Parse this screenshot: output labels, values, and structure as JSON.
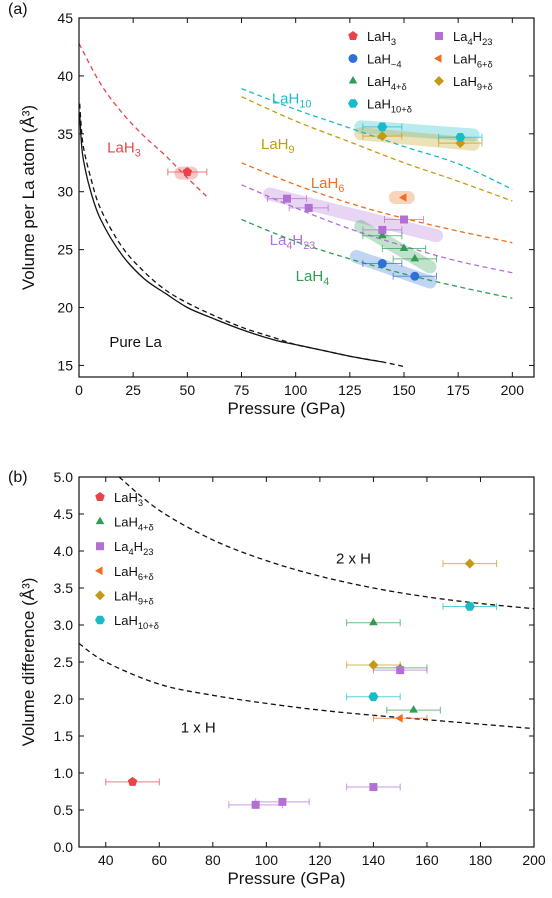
{
  "chart_data": [
    {
      "type": "scatter",
      "panel_label": "(a)",
      "xlabel": "Pressure (GPa)",
      "ylabel": "Volume per La atom (Å³)",
      "xlim": [
        0,
        210
      ],
      "ylim": [
        14,
        45
      ],
      "xticks": [
        "0",
        "25",
        "50",
        "75",
        "100",
        "125",
        "150",
        "175",
        "200"
      ],
      "yticks": [
        "15",
        "20",
        "25",
        "30",
        "35",
        "40",
        "45"
      ],
      "legend_position": "top-right",
      "legend": [
        {
          "base": "LaH",
          "sub": "3",
          "color": "#e8454a",
          "marker": "pentagon"
        },
        {
          "base": "La",
          "sub": "4",
          "sub2": "23",
          "mid": "H",
          "color": "#b36fd6",
          "marker": "square"
        },
        {
          "base": "LaH",
          "sub": "~4",
          "color": "#2e6fd8",
          "marker": "circle"
        },
        {
          "base": "LaH",
          "sub": "6+δ",
          "color": "#f06c1f",
          "marker": "tri-left"
        },
        {
          "base": "LaH",
          "sub": "4+δ",
          "color": "#2f9e55",
          "marker": "tri-up"
        },
        {
          "base": "LaH",
          "sub": "9+δ",
          "color": "#c49a14",
          "marker": "diamond"
        },
        {
          "base": "LaH",
          "sub": "10+δ",
          "color": "#18bcc7",
          "marker": "hexagon"
        }
      ],
      "annotations": [
        {
          "base": "LaH",
          "sub": "3",
          "x": 13,
          "y": 33.4,
          "color": "#e8454a"
        },
        {
          "base": "LaH",
          "sub": "10",
          "x": 89,
          "y": 37.6,
          "color": "#18bcc7"
        },
        {
          "base": "LaH",
          "sub": "9",
          "x": 84,
          "y": 33.7,
          "color": "#c49a14"
        },
        {
          "base": "LaH",
          "sub": "6",
          "x": 107,
          "y": 30.3,
          "color": "#f06c1f"
        },
        {
          "base": "La",
          "sub": "4",
          "mid": "H",
          "sub2": "23",
          "x": 88,
          "y": 25.4,
          "color": "#b36fd6"
        },
        {
          "base": "LaH",
          "sub": "4",
          "x": 100,
          "y": 22.3,
          "color": "#2f9e55"
        },
        {
          "base": "Pure La",
          "sub": "",
          "x": 14,
          "y": 16.6,
          "color": "#111111"
        }
      ],
      "curves": [
        {
          "name": "LaH3",
          "color": "#e8454a",
          "dash": true,
          "x": [
            0,
            10,
            20,
            30,
            40,
            50,
            60
          ],
          "y": [
            42.8,
            39.3,
            36.8,
            34.8,
            33.1,
            31.2,
            29.4
          ]
        },
        {
          "name": "LaH10",
          "color": "#18bcc7",
          "dash": true,
          "x": [
            75,
            100,
            125,
            150,
            175,
            200
          ],
          "y": [
            38.9,
            37.1,
            35.5,
            33.9,
            32.4,
            30.2
          ]
        },
        {
          "name": "LaH9",
          "color": "#c49a14",
          "dash": true,
          "x": [
            75,
            100,
            125,
            150,
            175,
            200
          ],
          "y": [
            38.2,
            36.1,
            34.3,
            32.5,
            30.9,
            29.2
          ]
        },
        {
          "name": "LaH6",
          "color": "#f06c1f",
          "dash": true,
          "x": [
            75,
            100,
            125,
            150,
            175,
            200
          ],
          "y": [
            32.5,
            30.6,
            29.0,
            27.7,
            26.6,
            25.6
          ]
        },
        {
          "name": "La4H23",
          "color": "#b36fd6",
          "dash": true,
          "x": [
            75,
            100,
            125,
            150,
            175,
            200
          ],
          "y": [
            30.6,
            28.6,
            26.8,
            25.3,
            24.0,
            23.0
          ]
        },
        {
          "name": "LaH4",
          "color": "#2f9e55",
          "dash": true,
          "x": [
            75,
            100,
            125,
            150,
            175,
            200
          ],
          "y": [
            27.6,
            25.7,
            24.2,
            22.9,
            21.8,
            20.8
          ]
        },
        {
          "name": "Pure La exp",
          "color": "#111111",
          "dash": false,
          "x": [
            0.3,
            1,
            2,
            5,
            10,
            20,
            30,
            40,
            50,
            60,
            75,
            90,
            100,
            110,
            125,
            140
          ],
          "y": [
            36.8,
            34.5,
            32.8,
            30.3,
            27.6,
            24.5,
            22.5,
            21.2,
            20.0,
            19.2,
            18.1,
            17.2,
            16.8,
            16.4,
            15.8,
            15.3
          ]
        },
        {
          "name": "Pure La calc",
          "color": "#111111",
          "dash": true,
          "x": [
            0.3,
            1,
            2,
            5,
            10,
            20,
            30,
            40,
            50,
            60,
            75,
            90,
            100,
            110,
            125,
            140,
            150
          ],
          "y": [
            37.6,
            35.7,
            33.9,
            31.5,
            28.5,
            25.2,
            23.1,
            21.5,
            20.4,
            19.5,
            18.3,
            17.4,
            16.8,
            16.4,
            15.8,
            15.3,
            14.9
          ]
        }
      ],
      "bands": [
        {
          "color": "#e8454a",
          "x": [
            47,
            52
          ],
          "y": [
            31.6,
            31.6
          ]
        },
        {
          "color": "#18bcc7",
          "x": [
            130,
            182
          ],
          "y": [
            35.6,
            34.9
          ]
        },
        {
          "color": "#c49a14",
          "x": [
            130,
            182
          ],
          "y": [
            35.0,
            34.1
          ]
        },
        {
          "color": "#f06c1f",
          "x": [
            146,
            152
          ],
          "y": [
            29.5,
            29.5
          ]
        },
        {
          "color": "#b36fd6",
          "x": [
            88,
            165
          ],
          "y": [
            29.8,
            26.2
          ]
        },
        {
          "color": "#2f9e55",
          "x": [
            130,
            162
          ],
          "y": [
            27.0,
            23.5
          ]
        },
        {
          "color": "#2e6fd8",
          "x": [
            128,
            162
          ],
          "y": [
            24.4,
            22.2
          ]
        }
      ],
      "series": [
        {
          "name": "LaH3",
          "marker": "pentagon",
          "color": "#e8454a",
          "points": [
            {
              "x": 50,
              "y": 31.7,
              "xerr": 9
            }
          ]
        },
        {
          "name": "LaH~4",
          "marker": "circle",
          "color": "#2e6fd8",
          "points": [
            {
              "x": 140,
              "y": 23.8,
              "xerr": 9
            },
            {
              "x": 155,
              "y": 22.7,
              "xerr": 10
            }
          ]
        },
        {
          "name": "LaH4+δ",
          "marker": "tri-up",
          "color": "#2f9e55",
          "points": [
            {
              "x": 140,
              "y": 26.2,
              "xerr": 9
            },
            {
              "x": 150,
              "y": 25.1,
              "xerr": 10
            },
            {
              "x": 155,
              "y": 24.2,
              "xerr": 10
            }
          ]
        },
        {
          "name": "La4H23",
          "marker": "square",
          "color": "#b36fd6",
          "points": [
            {
              "x": 96,
              "y": 29.4,
              "xerr": 9
            },
            {
              "x": 106,
              "y": 28.6,
              "xerr": 9
            },
            {
              "x": 140,
              "y": 26.7,
              "xerr": 9
            },
            {
              "x": 150,
              "y": 27.6,
              "xerr": 9
            }
          ]
        },
        {
          "name": "LaH6+δ",
          "marker": "tri-left",
          "color": "#f06c1f",
          "points": [
            {
              "x": 150,
              "y": 29.5,
              "xerr": 0
            }
          ]
        },
        {
          "name": "LaH9+δ",
          "marker": "diamond",
          "color": "#c49a14",
          "points": [
            {
              "x": 140,
              "y": 34.8,
              "xerr": 9
            },
            {
              "x": 176,
              "y": 34.2,
              "xerr": 10
            }
          ]
        },
        {
          "name": "LaH10+δ",
          "marker": "hexagon",
          "color": "#18bcc7",
          "points": [
            {
              "x": 140,
              "y": 35.6,
              "xerr": 9
            },
            {
              "x": 176,
              "y": 34.7,
              "xerr": 10
            }
          ]
        }
      ]
    },
    {
      "type": "scatter",
      "panel_label": "(b)",
      "xlabel": "Pressure (GPa)",
      "ylabel": "Volume difference (Å³)",
      "xlim": [
        30,
        200
      ],
      "ylim": [
        0,
        5
      ],
      "xticks": [
        "40",
        "60",
        "80",
        "100",
        "120",
        "140",
        "160",
        "180",
        "200"
      ],
      "yticks": [
        "0.0",
        "0.5",
        "1.0",
        "1.5",
        "2.0",
        "2.5",
        "3.0",
        "3.5",
        "4.0",
        "4.5",
        "5.0"
      ],
      "legend_position": "top-left",
      "legend": [
        {
          "base": "LaH",
          "sub": "3",
          "color": "#e8454a",
          "marker": "pentagon"
        },
        {
          "base": "LaH",
          "sub": "4+δ",
          "color": "#2f9e55",
          "marker": "tri-up"
        },
        {
          "base": "La",
          "sub": "4",
          "mid": "H",
          "sub2": "23",
          "color": "#b36fd6",
          "marker": "square"
        },
        {
          "base": "LaH",
          "sub": "6+δ",
          "color": "#f06c1f",
          "marker": "tri-left"
        },
        {
          "base": "LaH",
          "sub": "9+δ",
          "color": "#c49a14",
          "marker": "diamond"
        },
        {
          "base": "LaH",
          "sub": "10+δ",
          "color": "#18bcc7",
          "marker": "hexagon"
        }
      ],
      "annotations": [
        {
          "base": "2 x H",
          "sub": "",
          "x": 126,
          "y": 3.83,
          "color": "#111111"
        },
        {
          "base": "1 x H",
          "sub": "",
          "x": 68,
          "y": 1.55,
          "color": "#111111"
        }
      ],
      "curves": [
        {
          "name": "2 x H",
          "color": "#111111",
          "dash": true,
          "x": [
            45,
            60,
            80,
            100,
            120,
            140,
            160,
            180,
            200
          ],
          "y": [
            5.0,
            4.55,
            4.15,
            3.87,
            3.66,
            3.5,
            3.38,
            3.29,
            3.22
          ]
        },
        {
          "name": "1 x H",
          "color": "#111111",
          "dash": true,
          "x": [
            30,
            40,
            60,
            80,
            100,
            120,
            140,
            160,
            180,
            200
          ],
          "y": [
            2.75,
            2.5,
            2.2,
            2.05,
            1.94,
            1.85,
            1.78,
            1.72,
            1.66,
            1.6
          ]
        }
      ],
      "bands": [],
      "series": [
        {
          "name": "LaH3",
          "marker": "pentagon",
          "color": "#e8454a",
          "points": [
            {
              "x": 50,
              "y": 0.88,
              "xerr": 10
            }
          ]
        },
        {
          "name": "LaH4+δ",
          "marker": "tri-up",
          "color": "#2f9e55",
          "points": [
            {
              "x": 140,
              "y": 3.03,
              "xerr": 10
            },
            {
              "x": 150,
              "y": 2.42,
              "xerr": 10
            },
            {
              "x": 155,
              "y": 1.85,
              "xerr": 10
            }
          ]
        },
        {
          "name": "La4H23",
          "marker": "square",
          "color": "#b36fd6",
          "points": [
            {
              "x": 96,
              "y": 0.57,
              "xerr": 10
            },
            {
              "x": 106,
              "y": 0.61,
              "xerr": 10
            },
            {
              "x": 140,
              "y": 0.81,
              "xerr": 10
            },
            {
              "x": 150,
              "y": 2.39,
              "xerr": 10
            }
          ]
        },
        {
          "name": "LaH6+δ",
          "marker": "tri-left",
          "color": "#f06c1f",
          "points": [
            {
              "x": 150,
              "y": 1.74,
              "xerr": 10
            }
          ]
        },
        {
          "name": "LaH9+δ",
          "marker": "diamond",
          "color": "#c49a14",
          "points": [
            {
              "x": 140,
              "y": 2.46,
              "xerr": 10
            },
            {
              "x": 176,
              "y": 3.83,
              "xerr": 10
            }
          ]
        },
        {
          "name": "LaH10+δ",
          "marker": "hexagon",
          "color": "#18bcc7",
          "points": [
            {
              "x": 140,
              "y": 2.03,
              "xerr": 10
            },
            {
              "x": 176,
              "y": 3.25,
              "xerr": 10
            }
          ]
        }
      ]
    }
  ]
}
